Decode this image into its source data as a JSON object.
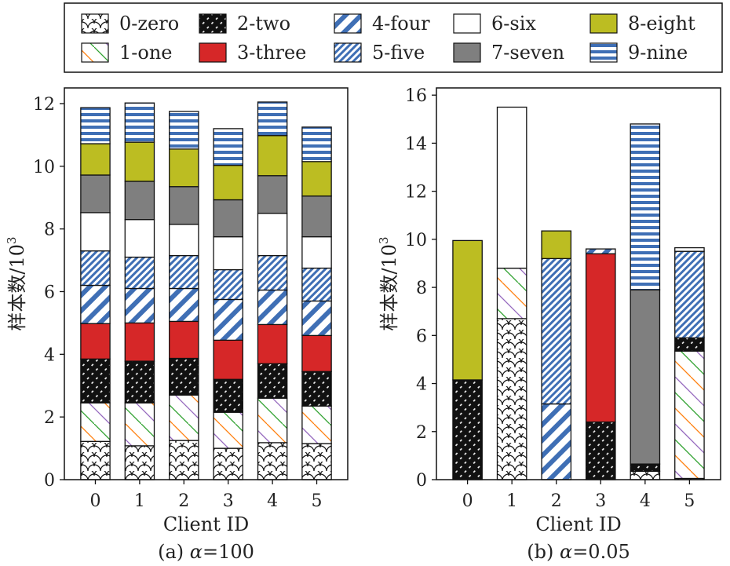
{
  "legend": {
    "entries": [
      {
        "label": "0-zero",
        "pattern": "scales"
      },
      {
        "label": "1-one",
        "pattern": "diag-colored"
      },
      {
        "label": "2-two",
        "pattern": "black-dots"
      },
      {
        "label": "3-three",
        "pattern": "solid-red"
      },
      {
        "label": "4-four",
        "pattern": "blue-diag-wide"
      },
      {
        "label": "5-five",
        "pattern": "blue-diag-fine"
      },
      {
        "label": "6-six",
        "pattern": "solid-white"
      },
      {
        "label": "7-seven",
        "pattern": "solid-gray"
      },
      {
        "label": "8-eight",
        "pattern": "solid-olive"
      },
      {
        "label": "9-nine",
        "pattern": "blue-hstripe"
      }
    ]
  },
  "colors": {
    "red": "#d62728",
    "gray": "#7f7f7f",
    "olive": "#bcbd22",
    "blue": "#3f6fb5",
    "black": "#111111"
  },
  "chart_data": [
    {
      "type": "bar",
      "stacked": true,
      "caption_prefix": "(a) ",
      "caption_symbol": "α",
      "caption_suffix": "=100",
      "xlabel": "Client ID",
      "ylabel": "样本数/10",
      "ylabel_sup": "3",
      "ylim": [
        0,
        12.5
      ],
      "yticks": [
        0,
        2,
        4,
        6,
        8,
        10,
        12
      ],
      "categories": [
        "0",
        "1",
        "2",
        "3",
        "4",
        "5"
      ],
      "series": [
        {
          "name": "0-zero",
          "values": [
            1.22,
            1.08,
            1.25,
            1.0,
            1.18,
            1.15
          ]
        },
        {
          "name": "1-one",
          "values": [
            1.23,
            1.37,
            1.45,
            1.15,
            1.42,
            1.2
          ]
        },
        {
          "name": "2-two",
          "values": [
            1.4,
            1.33,
            1.17,
            1.05,
            1.1,
            1.1
          ]
        },
        {
          "name": "3-three",
          "values": [
            1.13,
            1.22,
            1.18,
            1.25,
            1.25,
            1.15
          ]
        },
        {
          "name": "4-four",
          "values": [
            1.22,
            1.1,
            1.05,
            1.3,
            1.1,
            1.1
          ]
        },
        {
          "name": "5-five",
          "values": [
            1.1,
            1.0,
            1.05,
            0.95,
            1.1,
            1.05
          ]
        },
        {
          "name": "6-six",
          "values": [
            1.22,
            1.2,
            1.0,
            1.05,
            1.35,
            1.0
          ]
        },
        {
          "name": "7-seven",
          "values": [
            1.2,
            1.22,
            1.2,
            1.18,
            1.2,
            1.3
          ]
        },
        {
          "name": "8-eight",
          "values": [
            1.0,
            1.25,
            1.2,
            1.1,
            1.28,
            1.1
          ]
        },
        {
          "name": "9-nine",
          "values": [
            1.15,
            1.25,
            1.2,
            1.17,
            1.07,
            1.1
          ]
        }
      ]
    },
    {
      "type": "bar",
      "stacked": true,
      "caption_prefix": "(b) ",
      "caption_symbol": "α",
      "caption_suffix": "=0.05",
      "xlabel": "Client ID",
      "ylabel": "样本数/10",
      "ylabel_sup": "3",
      "ylim": [
        0,
        16.3
      ],
      "yticks": [
        0,
        2,
        4,
        6,
        8,
        10,
        12,
        14,
        16
      ],
      "categories": [
        "0",
        "1",
        "2",
        "3",
        "4",
        "5"
      ],
      "series": [
        {
          "name": "0-zero",
          "values": [
            0,
            6.7,
            0,
            0,
            0.35,
            0.05
          ]
        },
        {
          "name": "1-one",
          "values": [
            0,
            2.1,
            0,
            0,
            0,
            5.3
          ]
        },
        {
          "name": "2-two",
          "values": [
            4.15,
            0,
            0,
            2.4,
            0.3,
            0.55
          ]
        },
        {
          "name": "3-three",
          "values": [
            0,
            0,
            0,
            7.0,
            0,
            0
          ]
        },
        {
          "name": "4-four",
          "values": [
            0,
            0,
            3.15,
            0.2,
            0,
            0
          ]
        },
        {
          "name": "5-five",
          "values": [
            0,
            0,
            6.05,
            0,
            0,
            3.6
          ]
        },
        {
          "name": "6-six",
          "values": [
            0,
            6.7,
            0,
            0,
            0,
            0
          ]
        },
        {
          "name": "7-seven",
          "values": [
            0,
            0,
            0,
            0,
            7.25,
            0
          ]
        },
        {
          "name": "8-eight",
          "values": [
            5.8,
            0,
            1.15,
            0,
            0,
            0
          ]
        },
        {
          "name": "9-nine",
          "values": [
            0,
            0,
            0,
            0,
            6.9,
            0.15
          ]
        }
      ]
    }
  ]
}
